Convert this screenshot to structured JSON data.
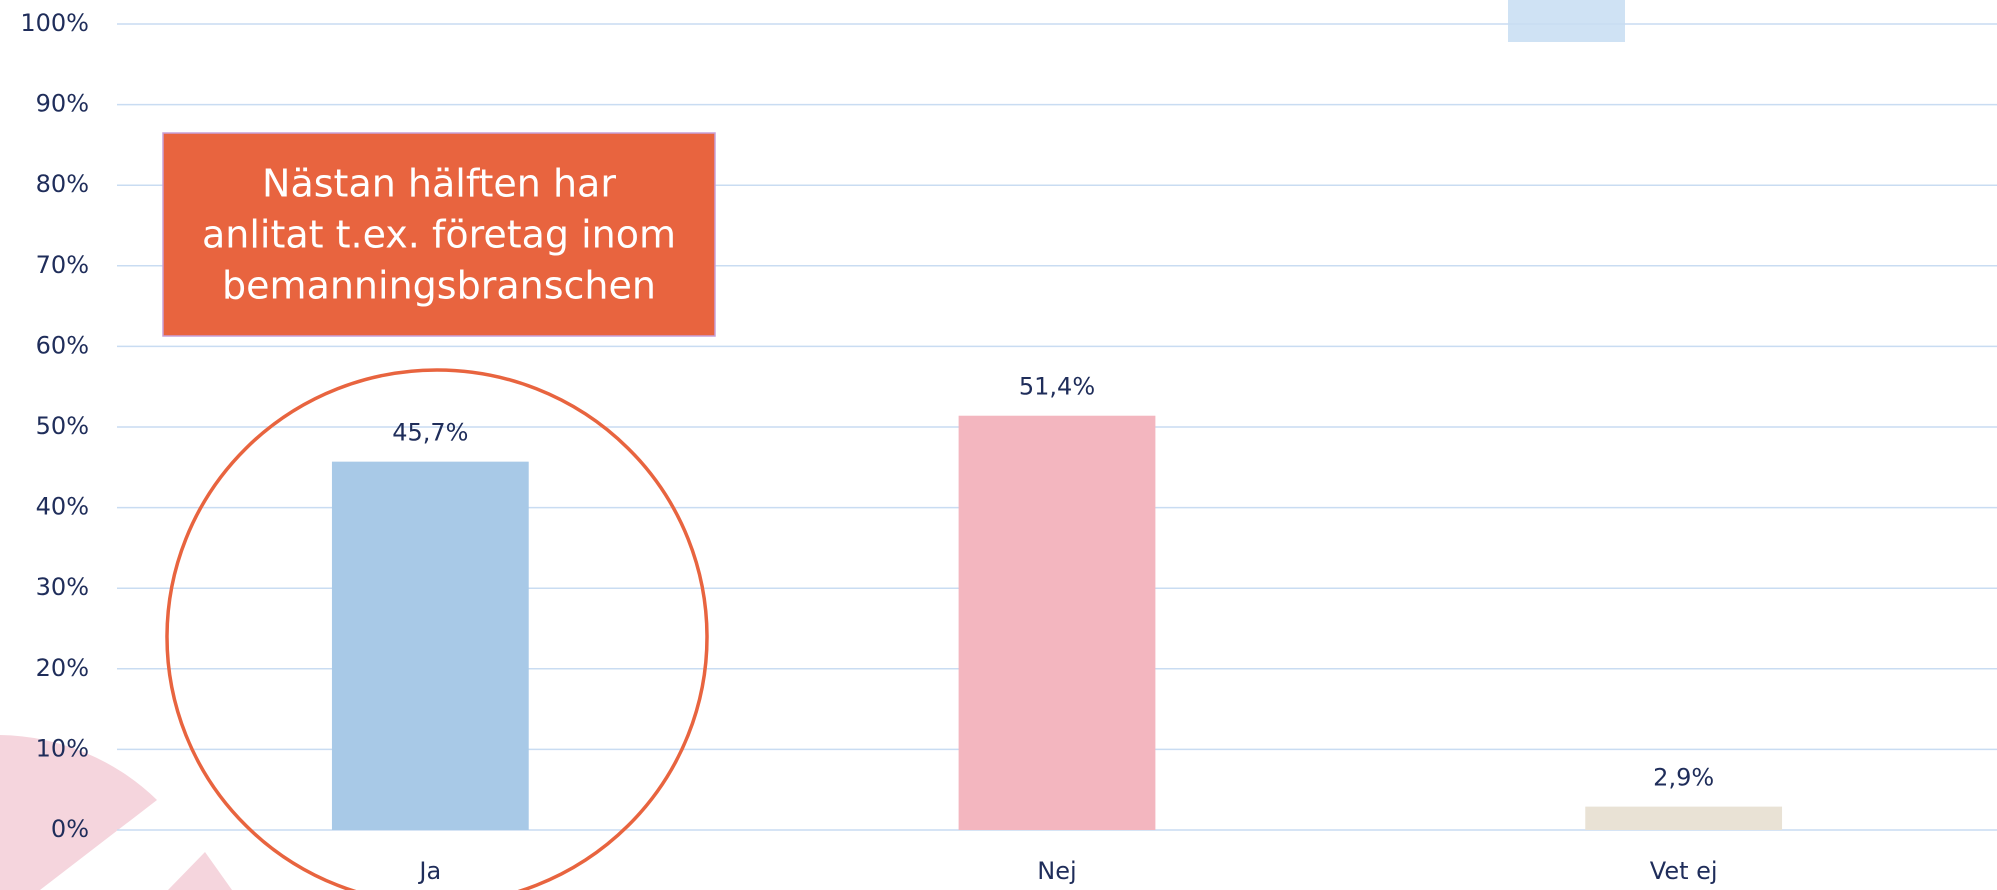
{
  "chart_data": {
    "type": "bar",
    "categories": [
      "Ja",
      "Nej",
      "Vet ej"
    ],
    "values": [
      45.7,
      51.4,
      2.9
    ],
    "value_labels": [
      "45,7%",
      "51,4%",
      "2,9%"
    ],
    "colors": [
      "#a8c9e7",
      "#f3b6bf",
      "#e9e2d5"
    ],
    "ylim": [
      0,
      100
    ],
    "yticks": [
      {
        "value": 0,
        "label": "0%"
      },
      {
        "value": 10,
        "label": "10%"
      },
      {
        "value": 20,
        "label": "20%"
      },
      {
        "value": 30,
        "label": "30%"
      },
      {
        "value": 40,
        "label": "40%"
      },
      {
        "value": 50,
        "label": "50%"
      },
      {
        "value": 60,
        "label": "60%"
      },
      {
        "value": 70,
        "label": "70%"
      },
      {
        "value": 80,
        "label": "80%"
      },
      {
        "value": 90,
        "label": "90%"
      },
      {
        "value": 100,
        "label": "100%"
      }
    ],
    "grid": true,
    "annotation": [
      "Nästan hälften har",
      "anlitat t.ex. företag inom",
      "bemanningsbranschen"
    ]
  }
}
